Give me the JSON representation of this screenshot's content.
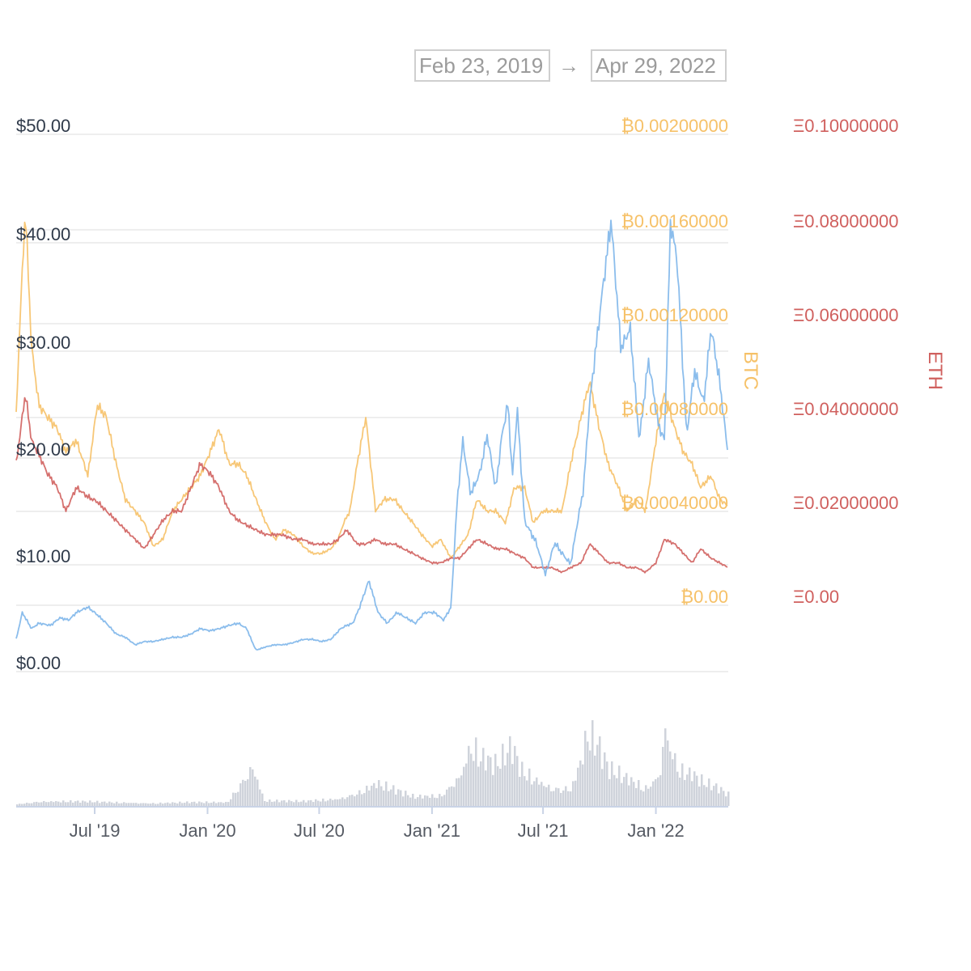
{
  "range": {
    "from": "Feb 23, 2019",
    "arrow": "→",
    "to": "Apr 29, 2022"
  },
  "colors": {
    "usd": "#7eb6ea",
    "btc": "#f6c168",
    "eth": "#d0605e",
    "volume": "#cfd3db",
    "grid": "#e9e9e9",
    "usd_axis": "#2f3a4a",
    "x_axis": "#555a63"
  },
  "chart_data": {
    "type": "line",
    "x_ticks": [
      "Jul '19",
      "Jan '20",
      "Jul '20",
      "Jan '21",
      "Jul '21",
      "Jan '22"
    ],
    "x_range": [
      "2019-02-23",
      "2022-04-29"
    ],
    "axes": {
      "usd": {
        "ticks": [
          "$0.00",
          "$10.00",
          "$20.00",
          "$30.00",
          "$40.00",
          "$50.00"
        ],
        "range": [
          0,
          50
        ]
      },
      "btc": {
        "label": "BTC",
        "ticks": [
          "₿0.00",
          "₿0.00040000",
          "₿0.00080000",
          "₿0.00120000",
          "₿0.00160000",
          "₿0.00200000"
        ],
        "range": [
          0,
          0.002
        ]
      },
      "eth": {
        "label": "ETH",
        "ticks": [
          "Ξ0.00",
          "Ξ0.02000000",
          "Ξ0.04000000",
          "Ξ0.06000000",
          "Ξ0.08000000",
          "Ξ0.10000000"
        ],
        "range": [
          0,
          0.1
        ]
      }
    },
    "grid": true,
    "series": [
      {
        "axis": "usd",
        "x": [
          "2019-02-23",
          "2019-03-05",
          "2019-03-20",
          "2019-04-01",
          "2019-04-20",
          "2019-05-05",
          "2019-05-20",
          "2019-06-01",
          "2019-06-20",
          "2019-07-05",
          "2019-07-20",
          "2019-08-05",
          "2019-08-20",
          "2019-09-05",
          "2019-09-20",
          "2019-10-05",
          "2019-10-20",
          "2019-11-05",
          "2019-11-20",
          "2019-12-05",
          "2019-12-20",
          "2020-01-05",
          "2020-01-20",
          "2020-02-05",
          "2020-02-20",
          "2020-03-05",
          "2020-03-12",
          "2020-03-20",
          "2020-04-05",
          "2020-04-20",
          "2020-05-05",
          "2020-05-20",
          "2020-06-05",
          "2020-06-20",
          "2020-07-05",
          "2020-07-20",
          "2020-08-05",
          "2020-08-15",
          "2020-08-25",
          "2020-09-05",
          "2020-09-20",
          "2020-10-05",
          "2020-10-20",
          "2020-11-05",
          "2020-11-20",
          "2020-12-05",
          "2020-12-20",
          "2021-01-05",
          "2021-01-20",
          "2021-02-01",
          "2021-02-10",
          "2021-02-20",
          "2021-03-05",
          "2021-03-20",
          "2021-04-01",
          "2021-04-15",
          "2021-04-25",
          "2021-05-05",
          "2021-05-12",
          "2021-05-20",
          "2021-06-01",
          "2021-06-20",
          "2021-07-05",
          "2021-07-20",
          "2021-08-01",
          "2021-08-15",
          "2021-08-25",
          "2021-09-05",
          "2021-09-15",
          "2021-09-25",
          "2021-10-05",
          "2021-10-20",
          "2021-11-05",
          "2021-11-20",
          "2021-12-05",
          "2021-12-20",
          "2022-01-05",
          "2022-01-15",
          "2022-01-25",
          "2022-02-05",
          "2022-02-20",
          "2022-03-05",
          "2022-03-20",
          "2022-04-01",
          "2022-04-15",
          "2022-04-29"
        ],
        "values": [
          3.0,
          5.5,
          4.0,
          4.5,
          4.3,
          5.0,
          4.8,
          5.5,
          6.0,
          5.3,
          4.5,
          3.5,
          3.2,
          2.5,
          2.8,
          2.8,
          3.0,
          3.2,
          3.2,
          3.5,
          4.0,
          3.8,
          4.0,
          4.3,
          4.5,
          4.0,
          3.0,
          2.0,
          2.3,
          2.5,
          2.5,
          2.7,
          3.0,
          3.0,
          2.8,
          3.0,
          4.0,
          4.3,
          4.5,
          6.0,
          8.5,
          5.5,
          4.5,
          5.5,
          5.0,
          4.5,
          5.5,
          5.5,
          4.8,
          6.0,
          15.0,
          21.5,
          16.5,
          18.5,
          22.0,
          17.0,
          22.0,
          25.0,
          18.0,
          24.5,
          14.0,
          12.0,
          9.0,
          12.0,
          11.0,
          10.0,
          13.5,
          17.0,
          25.0,
          30.0,
          35.0,
          42.0,
          30.0,
          32.0,
          21.5,
          29.0,
          23.0,
          21.5,
          42.0,
          38.0,
          22.0,
          28.0,
          25.0,
          32.0,
          27.0,
          20.0
        ]
      },
      {
        "axis": "btc",
        "x": [
          "2019-02-23",
          "2019-03-01",
          "2019-03-10",
          "2019-03-20",
          "2019-04-01",
          "2019-04-15",
          "2019-05-01",
          "2019-05-15",
          "2019-06-01",
          "2019-06-20",
          "2019-07-05",
          "2019-07-20",
          "2019-08-05",
          "2019-08-20",
          "2019-09-05",
          "2019-09-20",
          "2019-10-05",
          "2019-10-20",
          "2019-11-05",
          "2019-11-20",
          "2019-12-05",
          "2019-12-20",
          "2020-01-05",
          "2020-01-20",
          "2020-02-05",
          "2020-02-20",
          "2020-03-05",
          "2020-03-20",
          "2020-04-05",
          "2020-04-20",
          "2020-05-05",
          "2020-05-20",
          "2020-06-05",
          "2020-06-20",
          "2020-07-05",
          "2020-07-20",
          "2020-08-01",
          "2020-08-10",
          "2020-08-20",
          "2020-09-01",
          "2020-09-15",
          "2020-10-01",
          "2020-10-15",
          "2020-11-01",
          "2020-11-15",
          "2020-12-01",
          "2020-12-15",
          "2021-01-01",
          "2021-01-15",
          "2021-02-01",
          "2021-02-15",
          "2021-03-01",
          "2021-03-15",
          "2021-04-01",
          "2021-04-15",
          "2021-05-01",
          "2021-05-15",
          "2021-06-01",
          "2021-06-15",
          "2021-07-01",
          "2021-07-15",
          "2021-08-01",
          "2021-08-15",
          "2021-09-01",
          "2021-09-15",
          "2021-10-01",
          "2021-10-15",
          "2021-11-01",
          "2021-11-15",
          "2021-12-01",
          "2021-12-15",
          "2022-01-01",
          "2022-01-15",
          "2022-02-01",
          "2022-02-15",
          "2022-03-01",
          "2022-03-15",
          "2022-04-01",
          "2022-04-15",
          "2022-04-29"
        ],
        "values": [
          0.0008,
          0.0012,
          0.00168,
          0.0011,
          0.00085,
          0.0008,
          0.00075,
          0.00065,
          0.0007,
          0.00055,
          0.00085,
          0.0008,
          0.0006,
          0.00045,
          0.0004,
          0.00035,
          0.00025,
          0.00028,
          0.0004,
          0.00045,
          0.0005,
          0.00055,
          0.00065,
          0.00075,
          0.0006,
          0.0006,
          0.00055,
          0.00045,
          0.00035,
          0.00028,
          0.00032,
          0.0003,
          0.00025,
          0.00022,
          0.00022,
          0.00024,
          0.00028,
          0.00035,
          0.0004,
          0.0006,
          0.0008,
          0.0004,
          0.00045,
          0.00045,
          0.0004,
          0.00035,
          0.0003,
          0.00025,
          0.00028,
          0.0002,
          0.00025,
          0.0003,
          0.00045,
          0.0004,
          0.0004,
          0.00035,
          0.0005,
          0.0005,
          0.00035,
          0.0004,
          0.0004,
          0.0004,
          0.0006,
          0.0008,
          0.00095,
          0.00075,
          0.0006,
          0.0005,
          0.0004,
          0.00045,
          0.0004,
          0.0007,
          0.0009,
          0.00075,
          0.00065,
          0.0006,
          0.0005,
          0.00055,
          0.00045,
          0.00042
        ]
      },
      {
        "axis": "eth",
        "x": [
          "2019-02-23",
          "2019-03-01",
          "2019-03-10",
          "2019-03-20",
          "2019-04-01",
          "2019-04-15",
          "2019-05-01",
          "2019-05-15",
          "2019-06-01",
          "2019-06-20",
          "2019-07-05",
          "2019-07-20",
          "2019-08-05",
          "2019-08-20",
          "2019-09-05",
          "2019-09-20",
          "2019-10-05",
          "2019-10-20",
          "2019-11-05",
          "2019-11-20",
          "2019-12-05",
          "2019-12-20",
          "2020-01-05",
          "2020-01-20",
          "2020-02-05",
          "2020-02-20",
          "2020-03-05",
          "2020-03-20",
          "2020-04-05",
          "2020-05-01",
          "2020-05-20",
          "2020-06-05",
          "2020-06-20",
          "2020-07-05",
          "2020-07-20",
          "2020-08-01",
          "2020-08-15",
          "2020-09-01",
          "2020-09-15",
          "2020-10-01",
          "2020-10-15",
          "2020-11-01",
          "2020-11-15",
          "2020-12-01",
          "2020-12-15",
          "2021-01-01",
          "2021-01-15",
          "2021-02-01",
          "2021-02-15",
          "2021-03-01",
          "2021-03-15",
          "2021-04-01",
          "2021-04-15",
          "2021-05-01",
          "2021-05-15",
          "2021-06-01",
          "2021-06-15",
          "2021-07-01",
          "2021-07-15",
          "2021-08-01",
          "2021-08-15",
          "2021-09-01",
          "2021-09-15",
          "2021-10-01",
          "2021-10-15",
          "2021-11-01",
          "2021-11-15",
          "2021-12-01",
          "2021-12-15",
          "2022-01-01",
          "2022-01-15",
          "2022-02-01",
          "2022-02-15",
          "2022-03-01",
          "2022-03-15",
          "2022-04-01",
          "2022-04-15",
          "2022-04-29"
        ],
        "values": [
          0.03,
          0.036,
          0.045,
          0.035,
          0.032,
          0.028,
          0.025,
          0.02,
          0.025,
          0.023,
          0.022,
          0.02,
          0.018,
          0.016,
          0.014,
          0.012,
          0.015,
          0.018,
          0.02,
          0.02,
          0.025,
          0.03,
          0.028,
          0.025,
          0.02,
          0.018,
          0.017,
          0.016,
          0.015,
          0.015,
          0.014,
          0.014,
          0.013,
          0.013,
          0.013,
          0.014,
          0.016,
          0.013,
          0.013,
          0.014,
          0.013,
          0.013,
          0.012,
          0.011,
          0.01,
          0.009,
          0.009,
          0.01,
          0.01,
          0.012,
          0.014,
          0.013,
          0.012,
          0.012,
          0.011,
          0.01,
          0.008,
          0.008,
          0.008,
          0.007,
          0.008,
          0.009,
          0.013,
          0.011,
          0.009,
          0.009,
          0.008,
          0.008,
          0.007,
          0.009,
          0.014,
          0.013,
          0.011,
          0.009,
          0.012,
          0.01,
          0.009,
          0.008
        ]
      },
      {
        "axis": "volume",
        "x": [
          "2019-02-23",
          "2019-04-01",
          "2019-06-01",
          "2019-08-01",
          "2019-10-01",
          "2019-12-01",
          "2020-02-01",
          "2020-03-13",
          "2020-04-01",
          "2020-06-01",
          "2020-08-01",
          "2020-09-01",
          "2020-10-01",
          "2020-12-01",
          "2021-01-15",
          "2021-02-15",
          "2021-03-05",
          "2021-03-20",
          "2021-04-15",
          "2021-05-10",
          "2021-05-25",
          "2021-06-15",
          "2021-07-15",
          "2021-08-15",
          "2021-09-01",
          "2021-09-10",
          "2021-09-25",
          "2021-10-15",
          "2021-11-15",
          "2021-12-15",
          "2022-01-05",
          "2022-01-15",
          "2022-01-25",
          "2022-02-10",
          "2022-03-01",
          "2022-03-20",
          "2022-04-10",
          "2022-04-29"
        ],
        "values": [
          0.02,
          0.05,
          0.05,
          0.04,
          0.03,
          0.04,
          0.04,
          0.45,
          0.06,
          0.05,
          0.08,
          0.15,
          0.25,
          0.1,
          0.12,
          0.35,
          0.7,
          0.55,
          0.45,
          0.65,
          0.4,
          0.3,
          0.2,
          0.2,
          0.55,
          0.8,
          0.7,
          0.4,
          0.3,
          0.2,
          0.35,
          0.9,
          0.6,
          0.4,
          0.35,
          0.25,
          0.2,
          0.12
        ]
      }
    ]
  }
}
